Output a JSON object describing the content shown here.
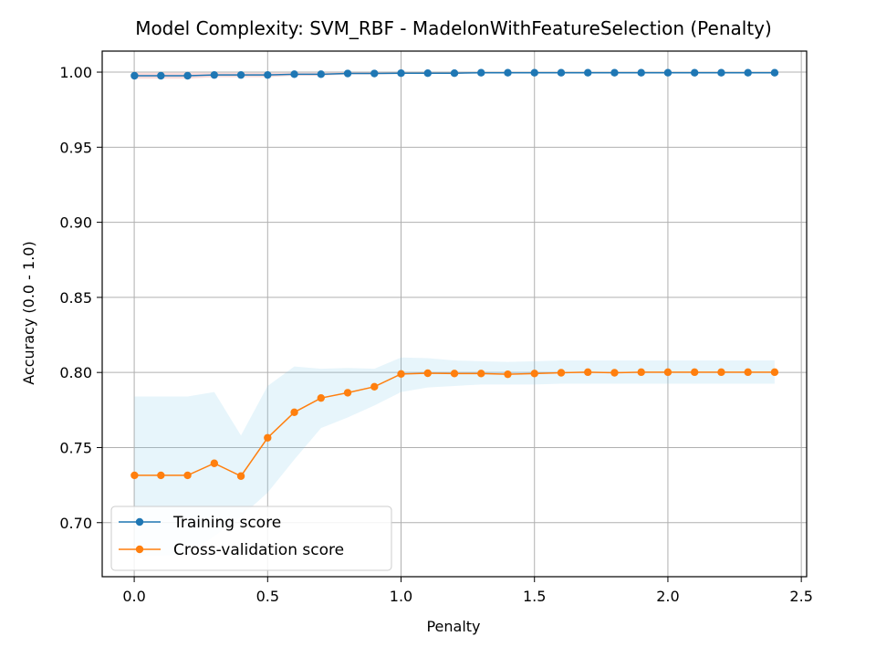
{
  "chart_data": {
    "type": "line",
    "title": "Model Complexity: SVM_RBF - MadelonWithFeatureSelection (Penalty)",
    "xlabel": "Penalty",
    "ylabel": "Accuracy (0.0 - 1.0)",
    "xlim": [
      -0.12,
      2.52
    ],
    "ylim": [
      0.664,
      1.014
    ],
    "xticks": [
      0.0,
      0.5,
      1.0,
      1.5,
      2.0,
      2.5
    ],
    "xtick_labels": [
      "0.0",
      "0.5",
      "1.0",
      "1.5",
      "2.0",
      "2.5"
    ],
    "yticks": [
      0.7,
      0.75,
      0.8,
      0.85,
      0.9,
      0.95,
      1.0
    ],
    "ytick_labels": [
      "0.70",
      "0.75",
      "0.80",
      "0.85",
      "0.90",
      "0.95",
      "1.00"
    ],
    "grid": true,
    "legend_position": "lower-left",
    "x": [
      0.001,
      0.1,
      0.2,
      0.3,
      0.4,
      0.5,
      0.6,
      0.7,
      0.8,
      0.9,
      1.0,
      1.1,
      1.2,
      1.3,
      1.4,
      1.5,
      1.6,
      1.7,
      1.8,
      1.9,
      2.0,
      2.1,
      2.2,
      2.3,
      2.4
    ],
    "series": [
      {
        "name": "Training score",
        "color": "#1f77b4",
        "band_color": "#ff9896",
        "values": [
          0.9976,
          0.9976,
          0.9976,
          0.9981,
          0.9981,
          0.9981,
          0.9986,
          0.9986,
          0.9991,
          0.9991,
          0.9993,
          0.9993,
          0.9993,
          0.9996,
          0.9996,
          0.9996,
          0.9996,
          0.9996,
          0.9996,
          0.9996,
          0.9996,
          0.9996,
          0.9996,
          0.9996,
          0.9996
        ],
        "lower": [
          0.9956,
          0.9956,
          0.9956,
          0.9966,
          0.9966,
          0.9966,
          0.9976,
          0.9976,
          0.9984,
          0.9984,
          0.9988,
          0.9988,
          0.9988,
          0.9993,
          0.9993,
          0.9993,
          0.9993,
          0.9993,
          0.9993,
          0.9993,
          0.9993,
          0.9993,
          0.9993,
          0.9993,
          0.9993
        ],
        "upper": [
          0.9996,
          0.9996,
          0.9996,
          0.9996,
          0.9996,
          0.9996,
          0.9996,
          0.9996,
          0.9998,
          0.9998,
          0.9998,
          0.9998,
          0.9998,
          0.9999,
          0.9999,
          0.9999,
          0.9999,
          0.9999,
          0.9999,
          0.9999,
          0.9999,
          0.9999,
          0.9999,
          0.9999,
          0.9999
        ]
      },
      {
        "name": "Cross-validation score",
        "color": "#ff7f0e",
        "band_color": "#87ceeb",
        "values": [
          0.7315,
          0.7315,
          0.7315,
          0.7395,
          0.731,
          0.7565,
          0.7735,
          0.783,
          0.7865,
          0.7905,
          0.799,
          0.7995,
          0.7993,
          0.7993,
          0.7988,
          0.7993,
          0.7998,
          0.8002,
          0.7998,
          0.8002,
          0.8002,
          0.8002,
          0.8002,
          0.8002,
          0.8002
        ],
        "lower": [
          0.678,
          0.678,
          0.679,
          0.691,
          0.704,
          0.72,
          0.742,
          0.763,
          0.77,
          0.778,
          0.787,
          0.79,
          0.791,
          0.792,
          0.792,
          0.792,
          0.7925,
          0.7925,
          0.7925,
          0.7925,
          0.7925,
          0.7925,
          0.7925,
          0.7925,
          0.7925
        ],
        "upper": [
          0.784,
          0.784,
          0.784,
          0.787,
          0.758,
          0.791,
          0.804,
          0.8025,
          0.803,
          0.8025,
          0.81,
          0.8095,
          0.808,
          0.8075,
          0.807,
          0.8075,
          0.808,
          0.808,
          0.808,
          0.808,
          0.808,
          0.808,
          0.808,
          0.808,
          0.808
        ]
      }
    ]
  }
}
